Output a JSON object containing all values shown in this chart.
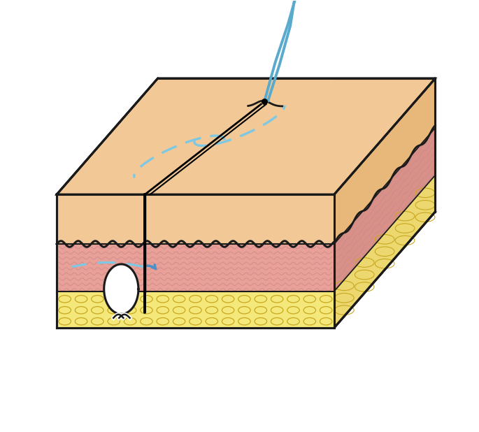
{
  "bg_color": "#ffffff",
  "skin_color": "#F2C896",
  "skin_side_color": "#E8B87A",
  "dermis_color": "#E8A098",
  "dermis_side_color": "#D89088",
  "fat_color": "#F5E87A",
  "fat_side_color": "#EDD870",
  "outline_color": "#1a1a1a",
  "suture_blue": "#7EC8E3",
  "suture_blue2": "#5AAACE",
  "arrow_blue": "#5090C8",
  "fig_width": 6.85,
  "fig_height": 6.18,
  "dpi": 100
}
